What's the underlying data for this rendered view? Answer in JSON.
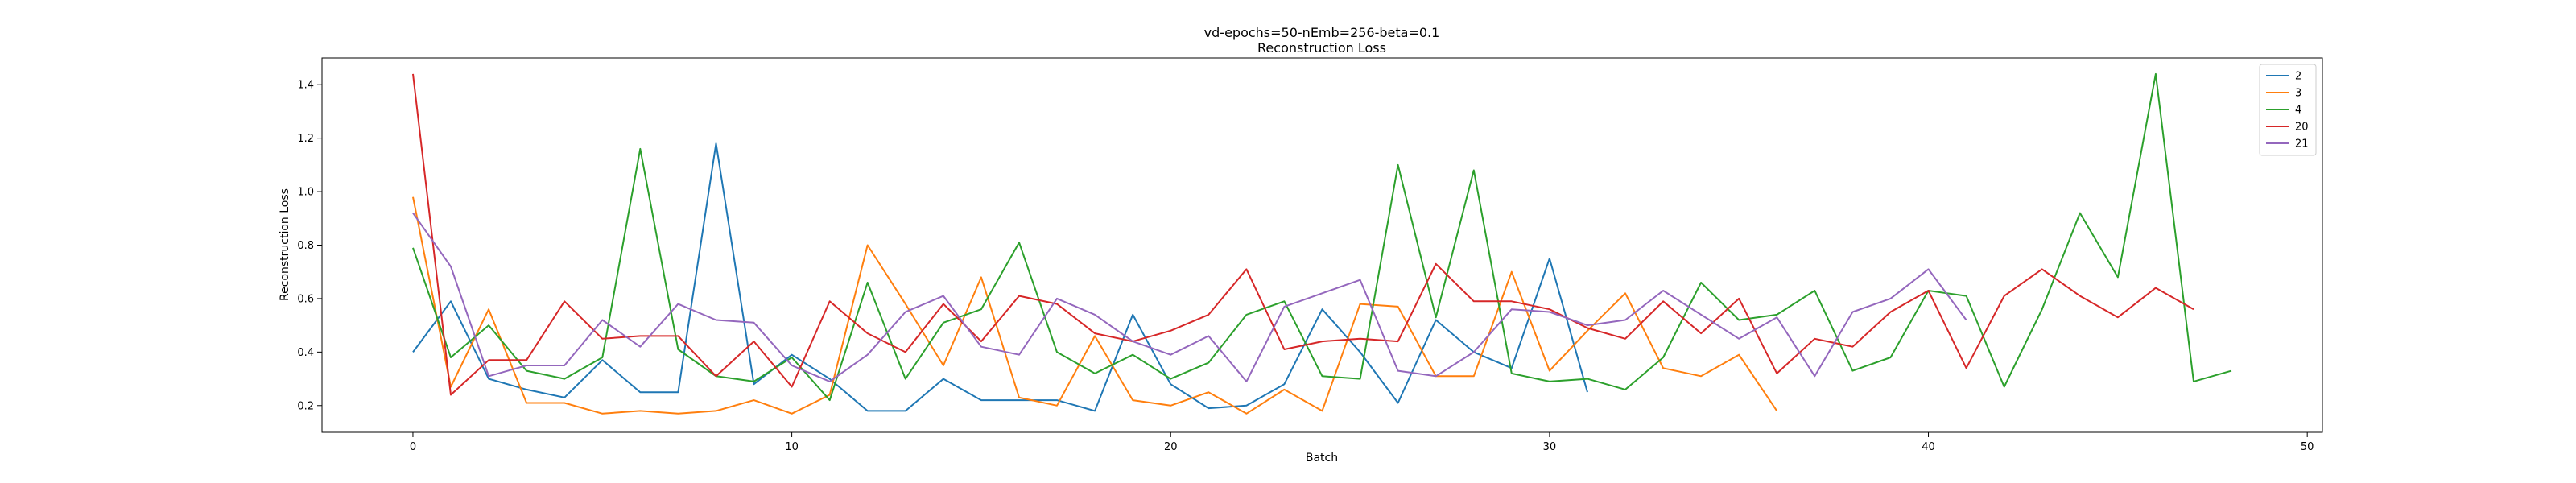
{
  "chart_data": {
    "type": "line",
    "title": "vd-epochs=50-nEmb=256-beta=0.1",
    "subtitle": "Reconstruction Loss",
    "xlabel": "Batch",
    "ylabel": "Reconstruction Loss",
    "xlim": [
      -2.4,
      50.4
    ],
    "ylim": [
      0.1,
      1.5
    ],
    "xticks": [
      0,
      10,
      20,
      30,
      40,
      50
    ],
    "yticks": [
      0.2,
      0.4,
      0.6,
      0.8,
      1.0,
      1.2,
      1.4
    ],
    "ytick_labels": [
      "0.2",
      "0.4",
      "0.6",
      "0.8",
      "1.0",
      "1.2",
      "1.4"
    ],
    "grid": false,
    "legend_position": "top-right",
    "series": [
      {
        "name": "2",
        "color": "#1f77b4",
        "x": [
          0,
          1,
          2,
          3,
          4,
          5,
          6,
          7,
          8,
          9,
          10,
          11,
          12,
          13,
          14,
          15,
          16,
          17,
          18,
          19,
          20,
          21,
          22,
          23,
          24,
          25,
          26,
          27,
          28,
          29,
          30,
          31
        ],
        "values": [
          0.4,
          0.59,
          0.3,
          0.26,
          0.23,
          0.37,
          0.25,
          0.25,
          1.18,
          0.28,
          0.39,
          0.3,
          0.18,
          0.18,
          0.3,
          0.22,
          0.22,
          0.22,
          0.18,
          0.54,
          0.28,
          0.19,
          0.2,
          0.28,
          0.56,
          0.4,
          0.21,
          0.52,
          0.4,
          0.34,
          0.75,
          0.25
        ]
      },
      {
        "name": "3",
        "color": "#ff7f0e",
        "x": [
          0,
          1,
          2,
          3,
          4,
          5,
          6,
          7,
          8,
          9,
          10,
          11,
          12,
          13,
          14,
          15,
          16,
          17,
          18,
          19,
          20,
          21,
          22,
          23,
          24,
          25,
          26,
          27,
          28,
          29,
          30,
          31,
          32,
          33,
          34,
          35,
          36
        ],
        "values": [
          0.98,
          0.27,
          0.56,
          0.21,
          0.21,
          0.17,
          0.18,
          0.17,
          0.18,
          0.22,
          0.17,
          0.24,
          0.8,
          0.58,
          0.35,
          0.68,
          0.23,
          0.2,
          0.46,
          0.22,
          0.2,
          0.25,
          0.17,
          0.26,
          0.18,
          0.58,
          0.57,
          0.31,
          0.31,
          0.7,
          0.33,
          0.48,
          0.62,
          0.34,
          0.31,
          0.39,
          0.18
        ]
      },
      {
        "name": "4",
        "color": "#2ca02c",
        "x": [
          0,
          1,
          2,
          3,
          4,
          5,
          6,
          7,
          8,
          9,
          10,
          11,
          12,
          13,
          14,
          15,
          16,
          17,
          18,
          19,
          20,
          21,
          22,
          23,
          24,
          25,
          26,
          27,
          28,
          29,
          30,
          31,
          32,
          33,
          34,
          35,
          36,
          37,
          38,
          39,
          40,
          41,
          42,
          43,
          44,
          45,
          46,
          47,
          48
        ],
        "values": [
          0.79,
          0.38,
          0.5,
          0.33,
          0.3,
          0.38,
          1.16,
          0.41,
          0.31,
          0.29,
          0.38,
          0.22,
          0.66,
          0.3,
          0.51,
          0.56,
          0.81,
          0.4,
          0.32,
          0.39,
          0.3,
          0.36,
          0.54,
          0.59,
          0.31,
          0.3,
          1.1,
          0.53,
          1.08,
          0.32,
          0.29,
          0.3,
          0.26,
          0.38,
          0.66,
          0.52,
          0.54,
          0.63,
          0.33,
          0.38,
          0.63,
          0.61,
          0.27,
          0.56,
          0.92,
          0.68,
          1.44,
          0.29,
          0.33
        ]
      },
      {
        "name": "20",
        "color": "#d62728",
        "x": [
          0,
          1,
          2,
          3,
          4,
          5,
          6,
          7,
          8,
          9,
          10,
          11,
          12,
          13,
          14,
          15,
          16,
          17,
          18,
          19,
          20,
          21,
          22,
          23,
          24,
          25,
          26,
          27,
          28,
          29,
          30,
          31,
          32,
          33,
          34,
          35,
          36,
          37,
          38,
          39,
          40,
          41,
          42,
          43,
          44,
          45,
          46,
          47
        ],
        "values": [
          1.44,
          0.24,
          0.37,
          0.37,
          0.59,
          0.45,
          0.46,
          0.46,
          0.31,
          0.44,
          0.27,
          0.59,
          0.47,
          0.4,
          0.58,
          0.44,
          0.61,
          0.58,
          0.47,
          0.44,
          0.48,
          0.54,
          0.71,
          0.41,
          0.44,
          0.45,
          0.44,
          0.73,
          0.59,
          0.59,
          0.56,
          0.49,
          0.45,
          0.59,
          0.47,
          0.6,
          0.32,
          0.45,
          0.42,
          0.55,
          0.63,
          0.34,
          0.61,
          0.71,
          0.61,
          0.53,
          0.64,
          0.56
        ]
      },
      {
        "name": "21",
        "color": "#9467bd",
        "x": [
          0,
          1,
          2,
          3,
          4,
          5,
          6,
          7,
          8,
          9,
          10,
          11,
          12,
          13,
          14,
          15,
          16,
          17,
          18,
          19,
          20,
          21,
          22,
          23,
          24,
          25,
          26,
          27,
          28,
          29,
          30,
          31,
          32,
          33,
          34,
          35,
          36,
          37,
          38,
          39,
          40,
          41
        ],
        "values": [
          0.92,
          0.72,
          0.31,
          0.35,
          0.35,
          0.52,
          0.42,
          0.58,
          0.52,
          0.51,
          0.35,
          0.29,
          0.39,
          0.55,
          0.61,
          0.42,
          0.39,
          0.6,
          0.54,
          0.44,
          0.39,
          0.46,
          0.29,
          0.57,
          0.62,
          0.67,
          0.33,
          0.31,
          0.4,
          0.56,
          0.55,
          0.5,
          0.52,
          0.63,
          0.54,
          0.45,
          0.53,
          0.31,
          0.55,
          0.6,
          0.71,
          0.52
        ]
      }
    ]
  }
}
